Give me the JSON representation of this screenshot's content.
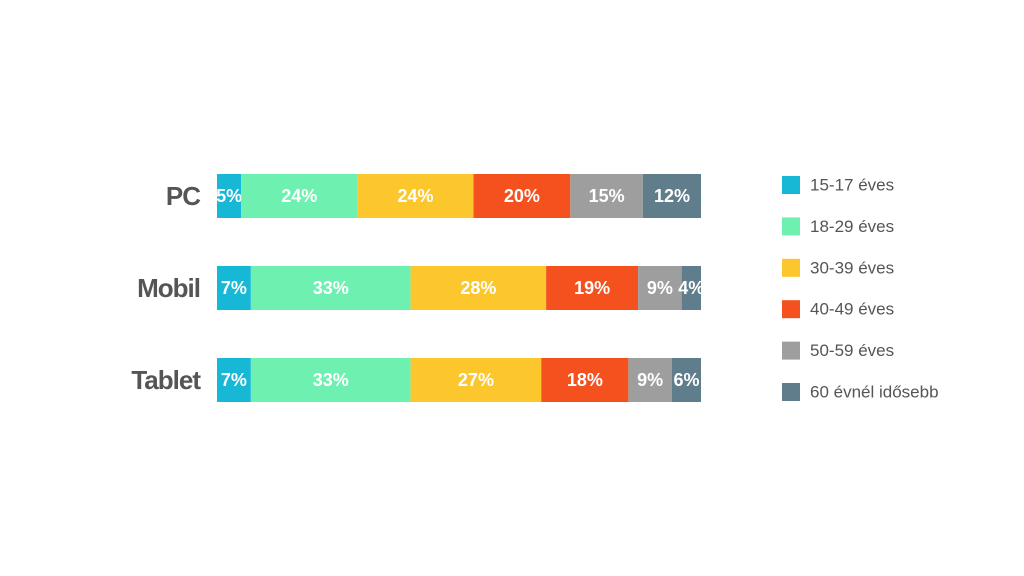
{
  "chart_data": {
    "type": "stacked_bar_horizontal",
    "categories": [
      "PC",
      "Mobil",
      "Tablet"
    ],
    "xlim": [
      0,
      100
    ],
    "series": [
      {
        "name": "15-17 éves",
        "color": "#17b8d6",
        "values": [
          5,
          7,
          7
        ],
        "value_labels": [
          "5%",
          "7%",
          "7%"
        ]
      },
      {
        "name": "18-29 éves",
        "color": "#6ef0b0",
        "values": [
          24,
          33,
          33
        ],
        "value_labels": [
          "24%",
          "33%",
          "33%"
        ]
      },
      {
        "name": "30-39 éves",
        "color": "#fcc72c",
        "values": [
          24,
          28,
          27
        ],
        "value_labels": [
          "24%",
          "28%",
          "27%"
        ]
      },
      {
        "name": "40-49 éves",
        "color": "#f4511e",
        "values": [
          20,
          19,
          18
        ],
        "value_labels": [
          "20%",
          "19%",
          "18%"
        ]
      },
      {
        "name": "50-59 éves",
        "color": "#9e9e9e",
        "values": [
          15,
          9,
          9
        ],
        "value_labels": [
          "15%",
          "9%",
          "9%"
        ]
      },
      {
        "name": "60 évnél idősebb",
        "color": "#607d8b",
        "values": [
          12,
          4,
          6
        ],
        "value_labels": [
          "12%",
          "4%",
          "6%"
        ]
      }
    ],
    "legend": "right"
  }
}
